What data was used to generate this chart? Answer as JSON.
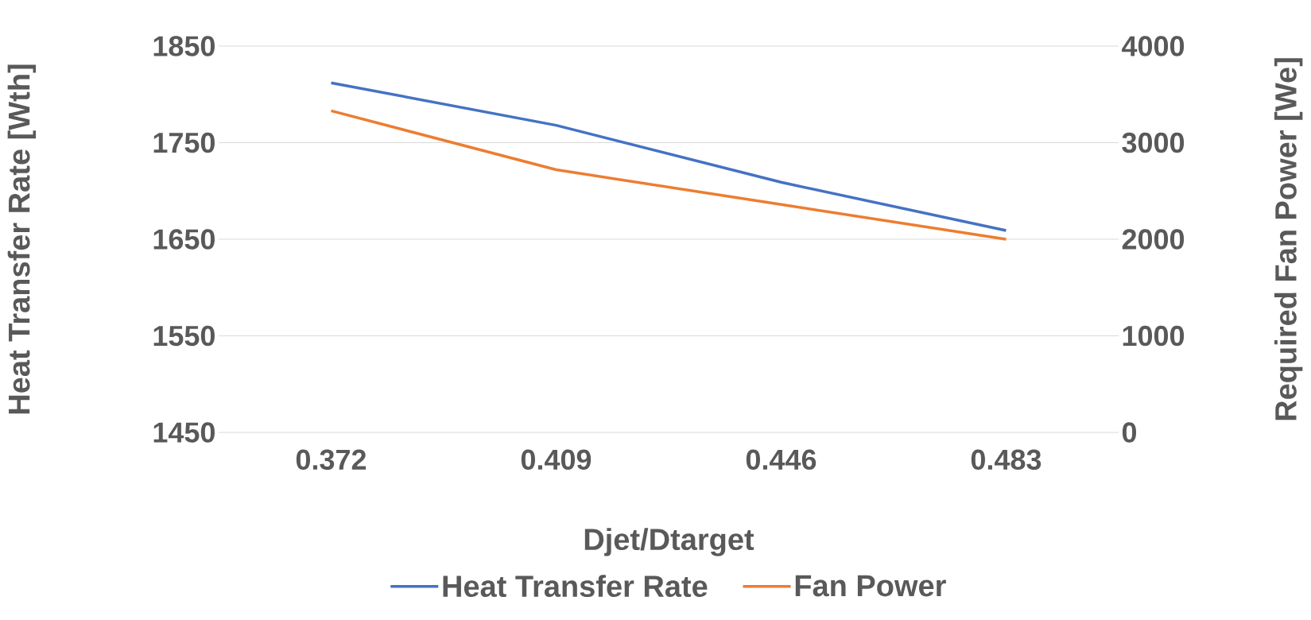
{
  "chart_data": {
    "type": "line",
    "xlabel": "Djet/Dtarget",
    "ylabel": "Heat Transfer Rate [Wth]",
    "y2label": "Required Fan Power [We]",
    "categories": [
      "0.372",
      "0.409",
      "0.446",
      "0.483"
    ],
    "series": [
      {
        "name": "Heat Transfer Rate",
        "color": "#4472c4",
        "values": [
          1812,
          1768,
          1709,
          1659
        ]
      },
      {
        "name": "Fan Power",
        "color": "#ed7d31",
        "axis": "y2",
        "values": [
          3330,
          2720,
          2360,
          2000
        ]
      }
    ],
    "ylim": [
      1450,
      1850
    ],
    "yticks": [
      1450,
      1550,
      1650,
      1750,
      1850
    ],
    "y2lim": [
      0,
      4000
    ],
    "y2ticks": [
      0,
      1000,
      2000,
      3000,
      4000
    ],
    "grid": "y",
    "legend": "bottom",
    "marker": "none",
    "line_style": "solid"
  }
}
